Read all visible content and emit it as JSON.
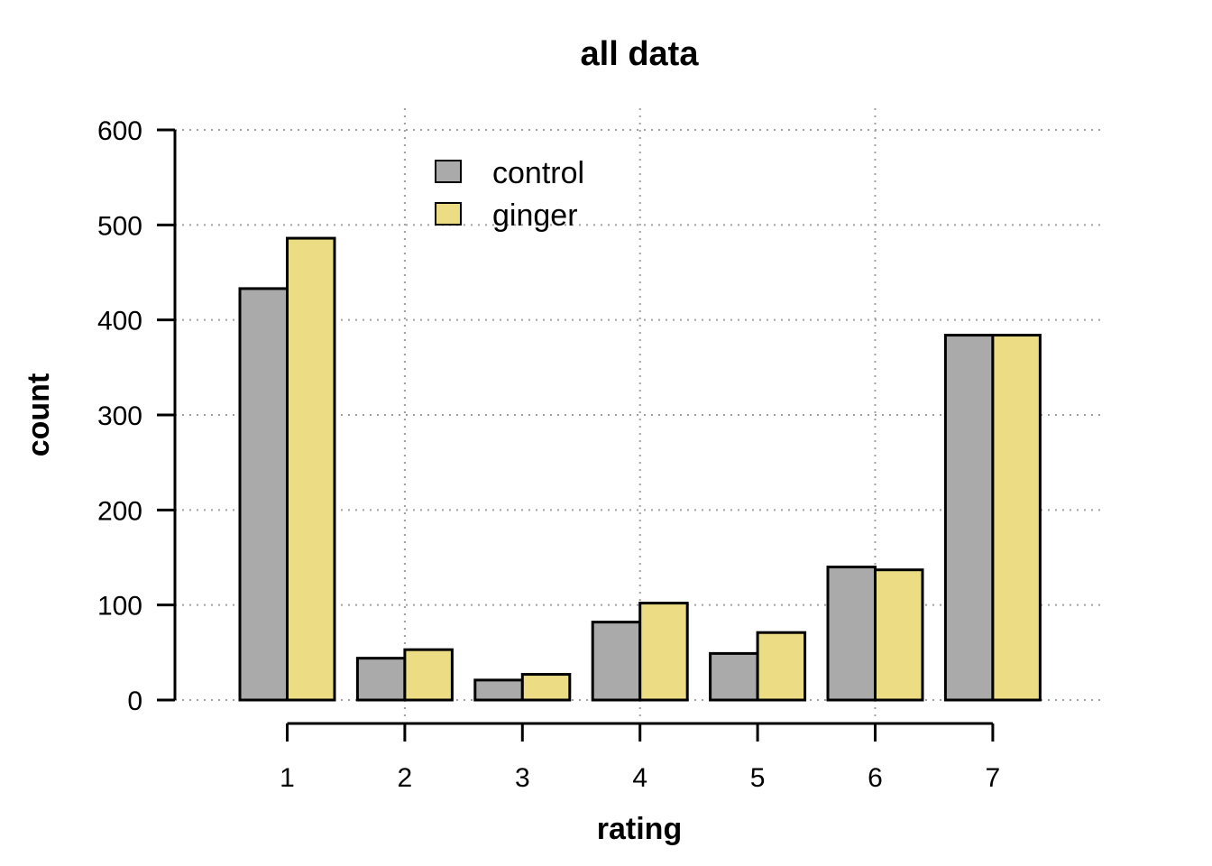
{
  "chart_data": {
    "type": "bar",
    "title": "all data",
    "xlabel": "rating",
    "ylabel": "count",
    "categories": [
      "1",
      "2",
      "3",
      "4",
      "5",
      "6",
      "7"
    ],
    "series": [
      {
        "name": "control",
        "color": "#aaaaaa",
        "values": [
          433,
          44,
          21,
          82,
          49,
          140,
          384
        ]
      },
      {
        "name": "ginger",
        "color": "#ecdc84",
        "values": [
          486,
          53,
          27,
          102,
          71,
          137,
          384
        ]
      }
    ],
    "ylim": [
      0,
      600
    ],
    "yticks": [
      0,
      100,
      200,
      300,
      400,
      500,
      600
    ],
    "grid": true,
    "legend_position": "top-center"
  }
}
